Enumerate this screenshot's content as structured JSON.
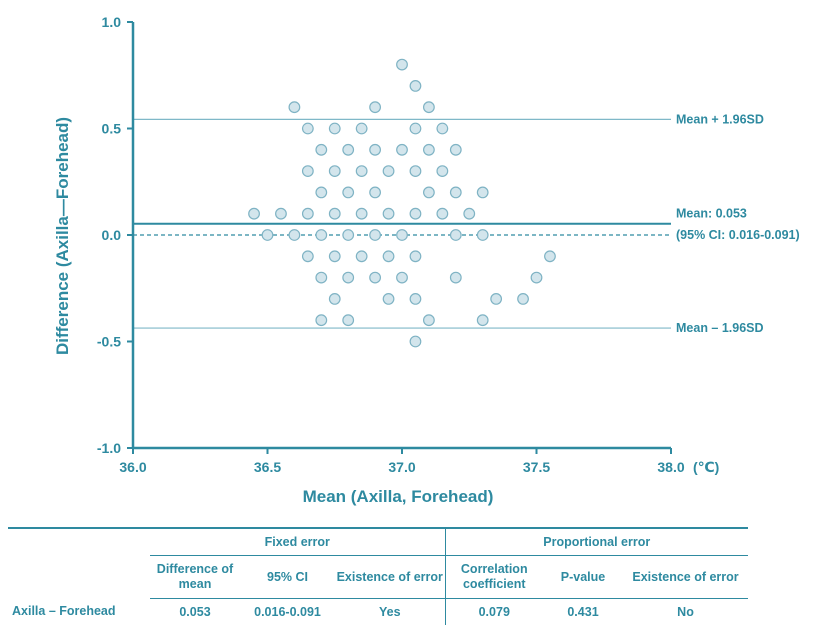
{
  "chart_data": {
    "type": "scatter",
    "xlabel": "Mean (Axilla, Forehead)",
    "ylabel": "Difference (Axilla—Forehead)",
    "xlim": [
      36.0,
      38.0
    ],
    "ylim": [
      -1.0,
      1.0
    ],
    "x_ticks": [
      "36.0",
      "36.5",
      "37.0",
      "37.5",
      "38.0"
    ],
    "x_unit": "(℃)",
    "y_ticks": [
      "1.0",
      "0.5",
      "0.0",
      "-0.5",
      "-1.0"
    ],
    "grid": false,
    "reference_lines": [
      {
        "y": 0.543,
        "style": "thin",
        "label": "Mean + 1.96SD",
        "label2": ""
      },
      {
        "y": 0.053,
        "style": "thick",
        "label": "Mean: 0.053",
        "label2": "(95% CI: 0.016-0.091)"
      },
      {
        "y": 0.0,
        "style": "dashed",
        "label": "",
        "label2": ""
      },
      {
        "y": -0.437,
        "style": "thin",
        "label": "Mean – 1.96SD",
        "label2": ""
      }
    ],
    "points": [
      {
        "x": 37.0,
        "y": 0.8
      },
      {
        "x": 37.05,
        "y": 0.7
      },
      {
        "x": 36.6,
        "y": 0.6
      },
      {
        "x": 36.9,
        "y": 0.6
      },
      {
        "x": 37.1,
        "y": 0.6
      },
      {
        "x": 36.65,
        "y": 0.5
      },
      {
        "x": 36.75,
        "y": 0.5
      },
      {
        "x": 36.85,
        "y": 0.5
      },
      {
        "x": 37.05,
        "y": 0.5
      },
      {
        "x": 37.15,
        "y": 0.5
      },
      {
        "x": 36.7,
        "y": 0.4
      },
      {
        "x": 36.8,
        "y": 0.4
      },
      {
        "x": 36.9,
        "y": 0.4
      },
      {
        "x": 37.0,
        "y": 0.4
      },
      {
        "x": 37.1,
        "y": 0.4
      },
      {
        "x": 37.2,
        "y": 0.4
      },
      {
        "x": 36.65,
        "y": 0.3
      },
      {
        "x": 36.75,
        "y": 0.3
      },
      {
        "x": 36.85,
        "y": 0.3
      },
      {
        "x": 36.95,
        "y": 0.3
      },
      {
        "x": 37.05,
        "y": 0.3
      },
      {
        "x": 37.15,
        "y": 0.3
      },
      {
        "x": 36.7,
        "y": 0.2
      },
      {
        "x": 36.8,
        "y": 0.2
      },
      {
        "x": 36.9,
        "y": 0.2
      },
      {
        "x": 37.1,
        "y": 0.2
      },
      {
        "x": 37.2,
        "y": 0.2
      },
      {
        "x": 37.3,
        "y": 0.2
      },
      {
        "x": 36.45,
        "y": 0.1
      },
      {
        "x": 36.55,
        "y": 0.1
      },
      {
        "x": 36.65,
        "y": 0.1
      },
      {
        "x": 36.75,
        "y": 0.1
      },
      {
        "x": 36.85,
        "y": 0.1
      },
      {
        "x": 36.95,
        "y": 0.1
      },
      {
        "x": 37.05,
        "y": 0.1
      },
      {
        "x": 37.15,
        "y": 0.1
      },
      {
        "x": 37.25,
        "y": 0.1
      },
      {
        "x": 36.5,
        "y": 0.0
      },
      {
        "x": 36.6,
        "y": 0.0
      },
      {
        "x": 36.7,
        "y": 0.0
      },
      {
        "x": 36.8,
        "y": 0.0
      },
      {
        "x": 36.9,
        "y": 0.0
      },
      {
        "x": 37.0,
        "y": 0.0
      },
      {
        "x": 37.2,
        "y": 0.0
      },
      {
        "x": 37.3,
        "y": 0.0
      },
      {
        "x": 36.65,
        "y": -0.1
      },
      {
        "x": 36.75,
        "y": -0.1
      },
      {
        "x": 36.85,
        "y": -0.1
      },
      {
        "x": 36.95,
        "y": -0.1
      },
      {
        "x": 37.05,
        "y": -0.1
      },
      {
        "x": 37.55,
        "y": -0.1
      },
      {
        "x": 36.7,
        "y": -0.2
      },
      {
        "x": 36.8,
        "y": -0.2
      },
      {
        "x": 36.9,
        "y": -0.2
      },
      {
        "x": 37.0,
        "y": -0.2
      },
      {
        "x": 37.2,
        "y": -0.2
      },
      {
        "x": 37.5,
        "y": -0.2
      },
      {
        "x": 36.75,
        "y": -0.3
      },
      {
        "x": 36.95,
        "y": -0.3
      },
      {
        "x": 37.05,
        "y": -0.3
      },
      {
        "x": 37.35,
        "y": -0.3
      },
      {
        "x": 37.45,
        "y": -0.3
      },
      {
        "x": 36.7,
        "y": -0.4
      },
      {
        "x": 36.8,
        "y": -0.4
      },
      {
        "x": 37.1,
        "y": -0.4
      },
      {
        "x": 37.3,
        "y": -0.4
      },
      {
        "x": 37.05,
        "y": -0.5
      }
    ],
    "colors": {
      "accent": "#2e8aa0",
      "marker_fill": "#d3e5ec",
      "marker_stroke": "#7fb3c4",
      "reference_line": "#7fb8c8"
    }
  },
  "table": {
    "group_headers": {
      "fixed": "Fixed error",
      "proportional": "Proportional error"
    },
    "columns": [
      "Difference of mean",
      "95% CI",
      "Existence of error",
      "Correlation coefficient",
      "P-value",
      "Existence of error"
    ],
    "rows": [
      {
        "label": "Axilla – Forehead",
        "values": [
          "0.053",
          "0.016-0.091",
          "Yes",
          "0.079",
          "0.431",
          "No"
        ]
      }
    ]
  }
}
